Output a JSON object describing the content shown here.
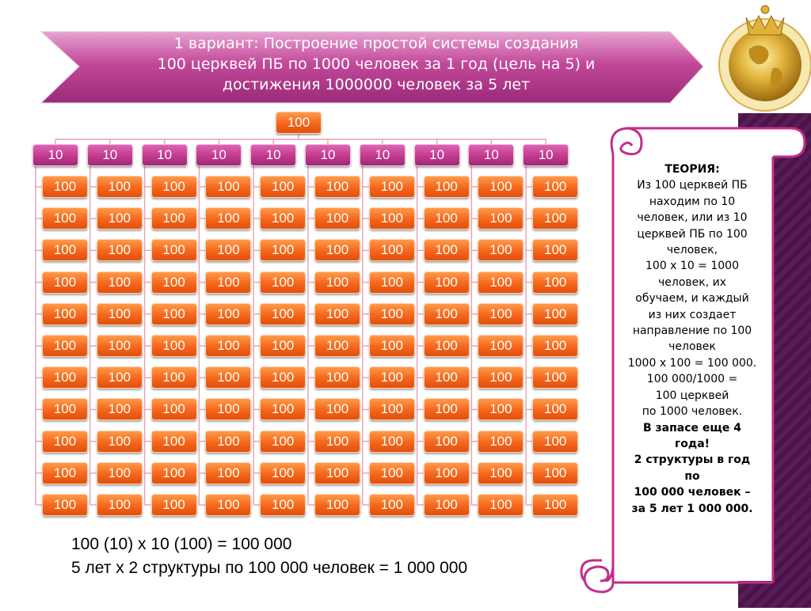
{
  "title": {
    "line1": "1 вариант:  Построение простой системы создания",
    "line2": "100 церквей ПБ по 1000 человек за 1 год (цель на 5) и",
    "line3": "достижения 1000000 человек за 5 лет"
  },
  "tree": {
    "root_label": "100",
    "level1_labels": [
      "10",
      "10",
      "10",
      "10",
      "10",
      "10",
      "10",
      "10",
      "10",
      "10"
    ],
    "leaf_label": "100",
    "rows": 11,
    "columns": 10
  },
  "theory": {
    "lines": [
      {
        "text": "ТЕОРИЯ:",
        "bold": true
      },
      {
        "text": "Из 100 церквей ПБ",
        "bold": false
      },
      {
        "text": "находим по 10",
        "bold": false
      },
      {
        "text": "человек, или из 10",
        "bold": false
      },
      {
        "text": "церквей ПБ по 100",
        "bold": false
      },
      {
        "text": "человек,",
        "bold": false
      },
      {
        "text": "100 х 10 = 1000",
        "bold": false
      },
      {
        "text": "человек, их",
        "bold": false
      },
      {
        "text": "обучаем, и каждый",
        "bold": false
      },
      {
        "text": "из них создает",
        "bold": false
      },
      {
        "text": "направление по 100",
        "bold": false
      },
      {
        "text": "человек",
        "bold": false
      },
      {
        "text": "1000 х 100 = 100 000.",
        "bold": false
      },
      {
        "text": "100 000/1000 =",
        "bold": false
      },
      {
        "text": "100 церквей",
        "bold": false
      },
      {
        "text": "по 1000 человек.",
        "bold": false
      },
      {
        "text": "В запасе еще 4",
        "bold": true
      },
      {
        "text": "года!",
        "bold": true
      },
      {
        "text": "2 структуры в год",
        "bold": true
      },
      {
        "text": "по",
        "bold": true
      },
      {
        "text": "100 000 человек –",
        "bold": true
      },
      {
        "text": "за 5 лет 1 000 000.",
        "bold": true
      }
    ]
  },
  "formulas": {
    "line1": "100 (10) х 10 (100) = 100 000",
    "line2": "5 лет х 2 структуры по 100 000 человек = 1 000 000"
  },
  "colors": {
    "banner": "#b5348a",
    "root_box": "#f4661a",
    "level1_box": "#c0398d",
    "leaf_box": "#f4661a",
    "sidebar": "#4a1448",
    "scroll_border": "#c22d8a"
  },
  "icons": {
    "logo": "gold-globe-crown-icon"
  }
}
